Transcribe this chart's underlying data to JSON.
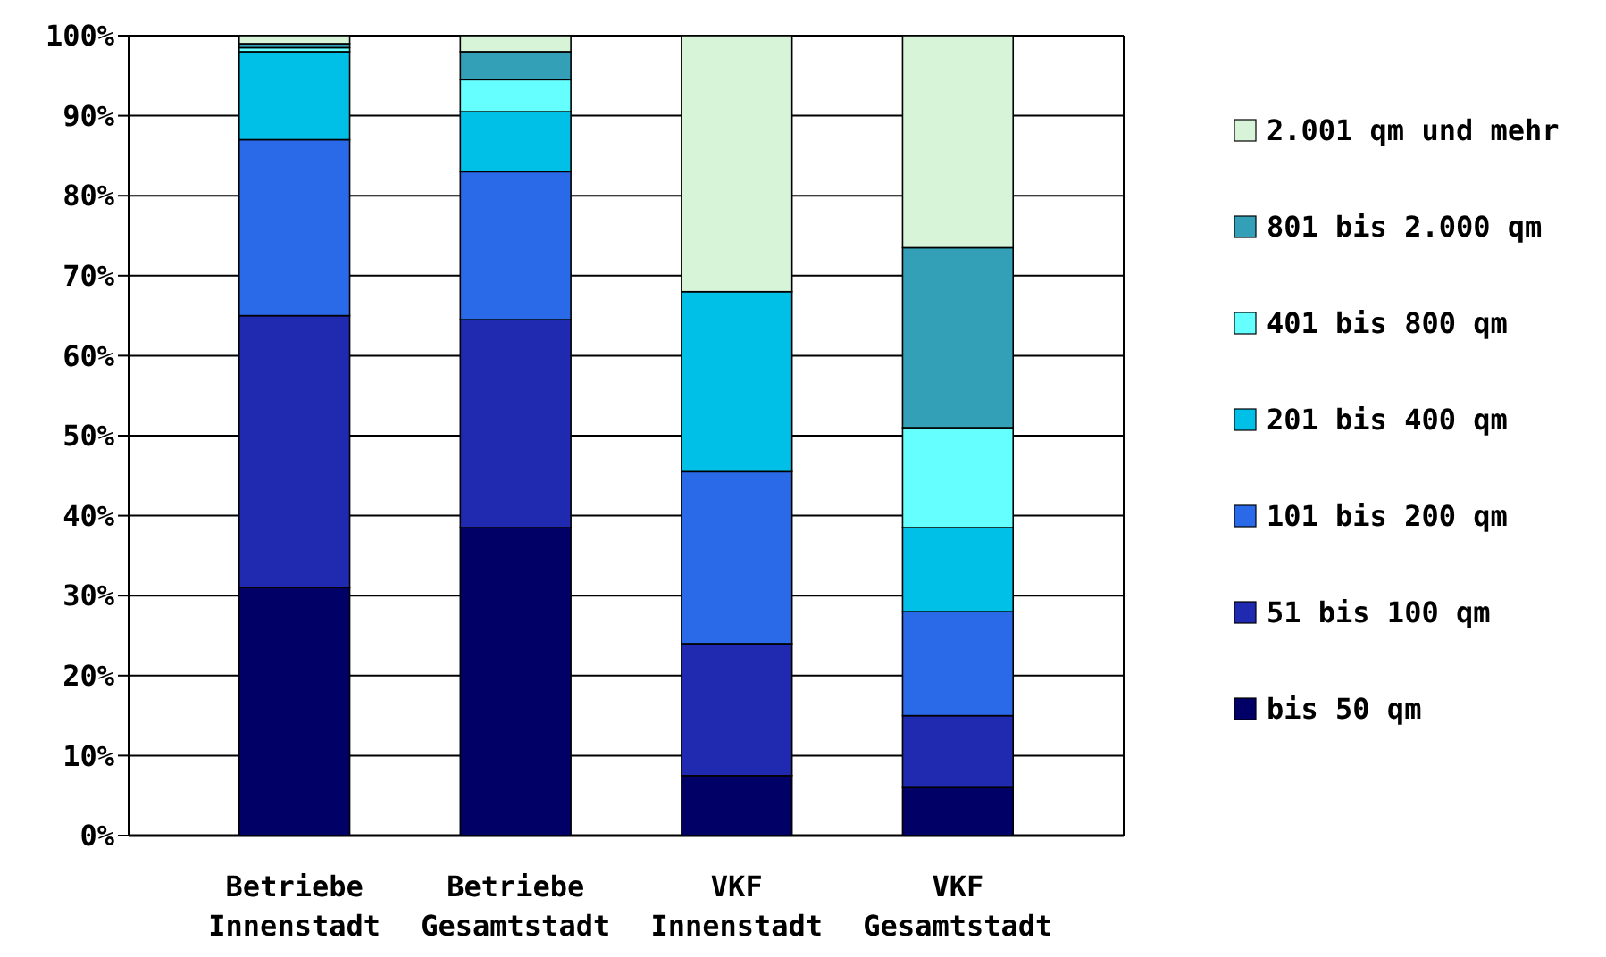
{
  "chart_data": {
    "type": "bar",
    "stacked": true,
    "categories": [
      "Betriebe\nInnenstadt",
      "Betriebe\nGesamtstadt",
      "VKF\nInnenstadt",
      "VKF\nGesamtstadt"
    ],
    "series": [
      {
        "name": "bis 50 qm",
        "color": "#000066",
        "values": [
          31,
          38.5,
          7.5,
          6
        ]
      },
      {
        "name": "51 bis 100 qm",
        "color": "#1f2ab0",
        "values": [
          34,
          26,
          16.5,
          9
        ]
      },
      {
        "name": "101 bis 200 qm",
        "color": "#2a6ae8",
        "values": [
          22,
          18.5,
          21.5,
          13
        ]
      },
      {
        "name": "201 bis 400 qm",
        "color": "#00c0e8",
        "values": [
          11,
          7.5,
          22.5,
          10.5
        ]
      },
      {
        "name": "401 bis 800 qm",
        "color": "#66ffff",
        "values": [
          0.5,
          4,
          0,
          12.5
        ]
      },
      {
        "name": "801 bis 2.000 qm",
        "color": "#33a0b8",
        "values": [
          0.5,
          3.5,
          0,
          22.5
        ]
      },
      {
        "name": "2.001 qm und mehr",
        "color": "#d8f4d8",
        "values": [
          1,
          2,
          32,
          26.5
        ]
      }
    ],
    "ylim": [
      0,
      100
    ],
    "yticks": [
      {
        "value": 0,
        "label": "0%"
      },
      {
        "value": 10,
        "label": "10%"
      },
      {
        "value": 20,
        "label": "20%"
      },
      {
        "value": 30,
        "label": "30%"
      },
      {
        "value": 40,
        "label": "40%"
      },
      {
        "value": 50,
        "label": "50%"
      },
      {
        "value": 60,
        "label": "60%"
      },
      {
        "value": 70,
        "label": "70%"
      },
      {
        "value": 80,
        "label": "80%"
      },
      {
        "value": 90,
        "label": "90%"
      },
      {
        "value": 100,
        "label": "100%"
      }
    ],
    "grid": "y",
    "legend": "right"
  }
}
